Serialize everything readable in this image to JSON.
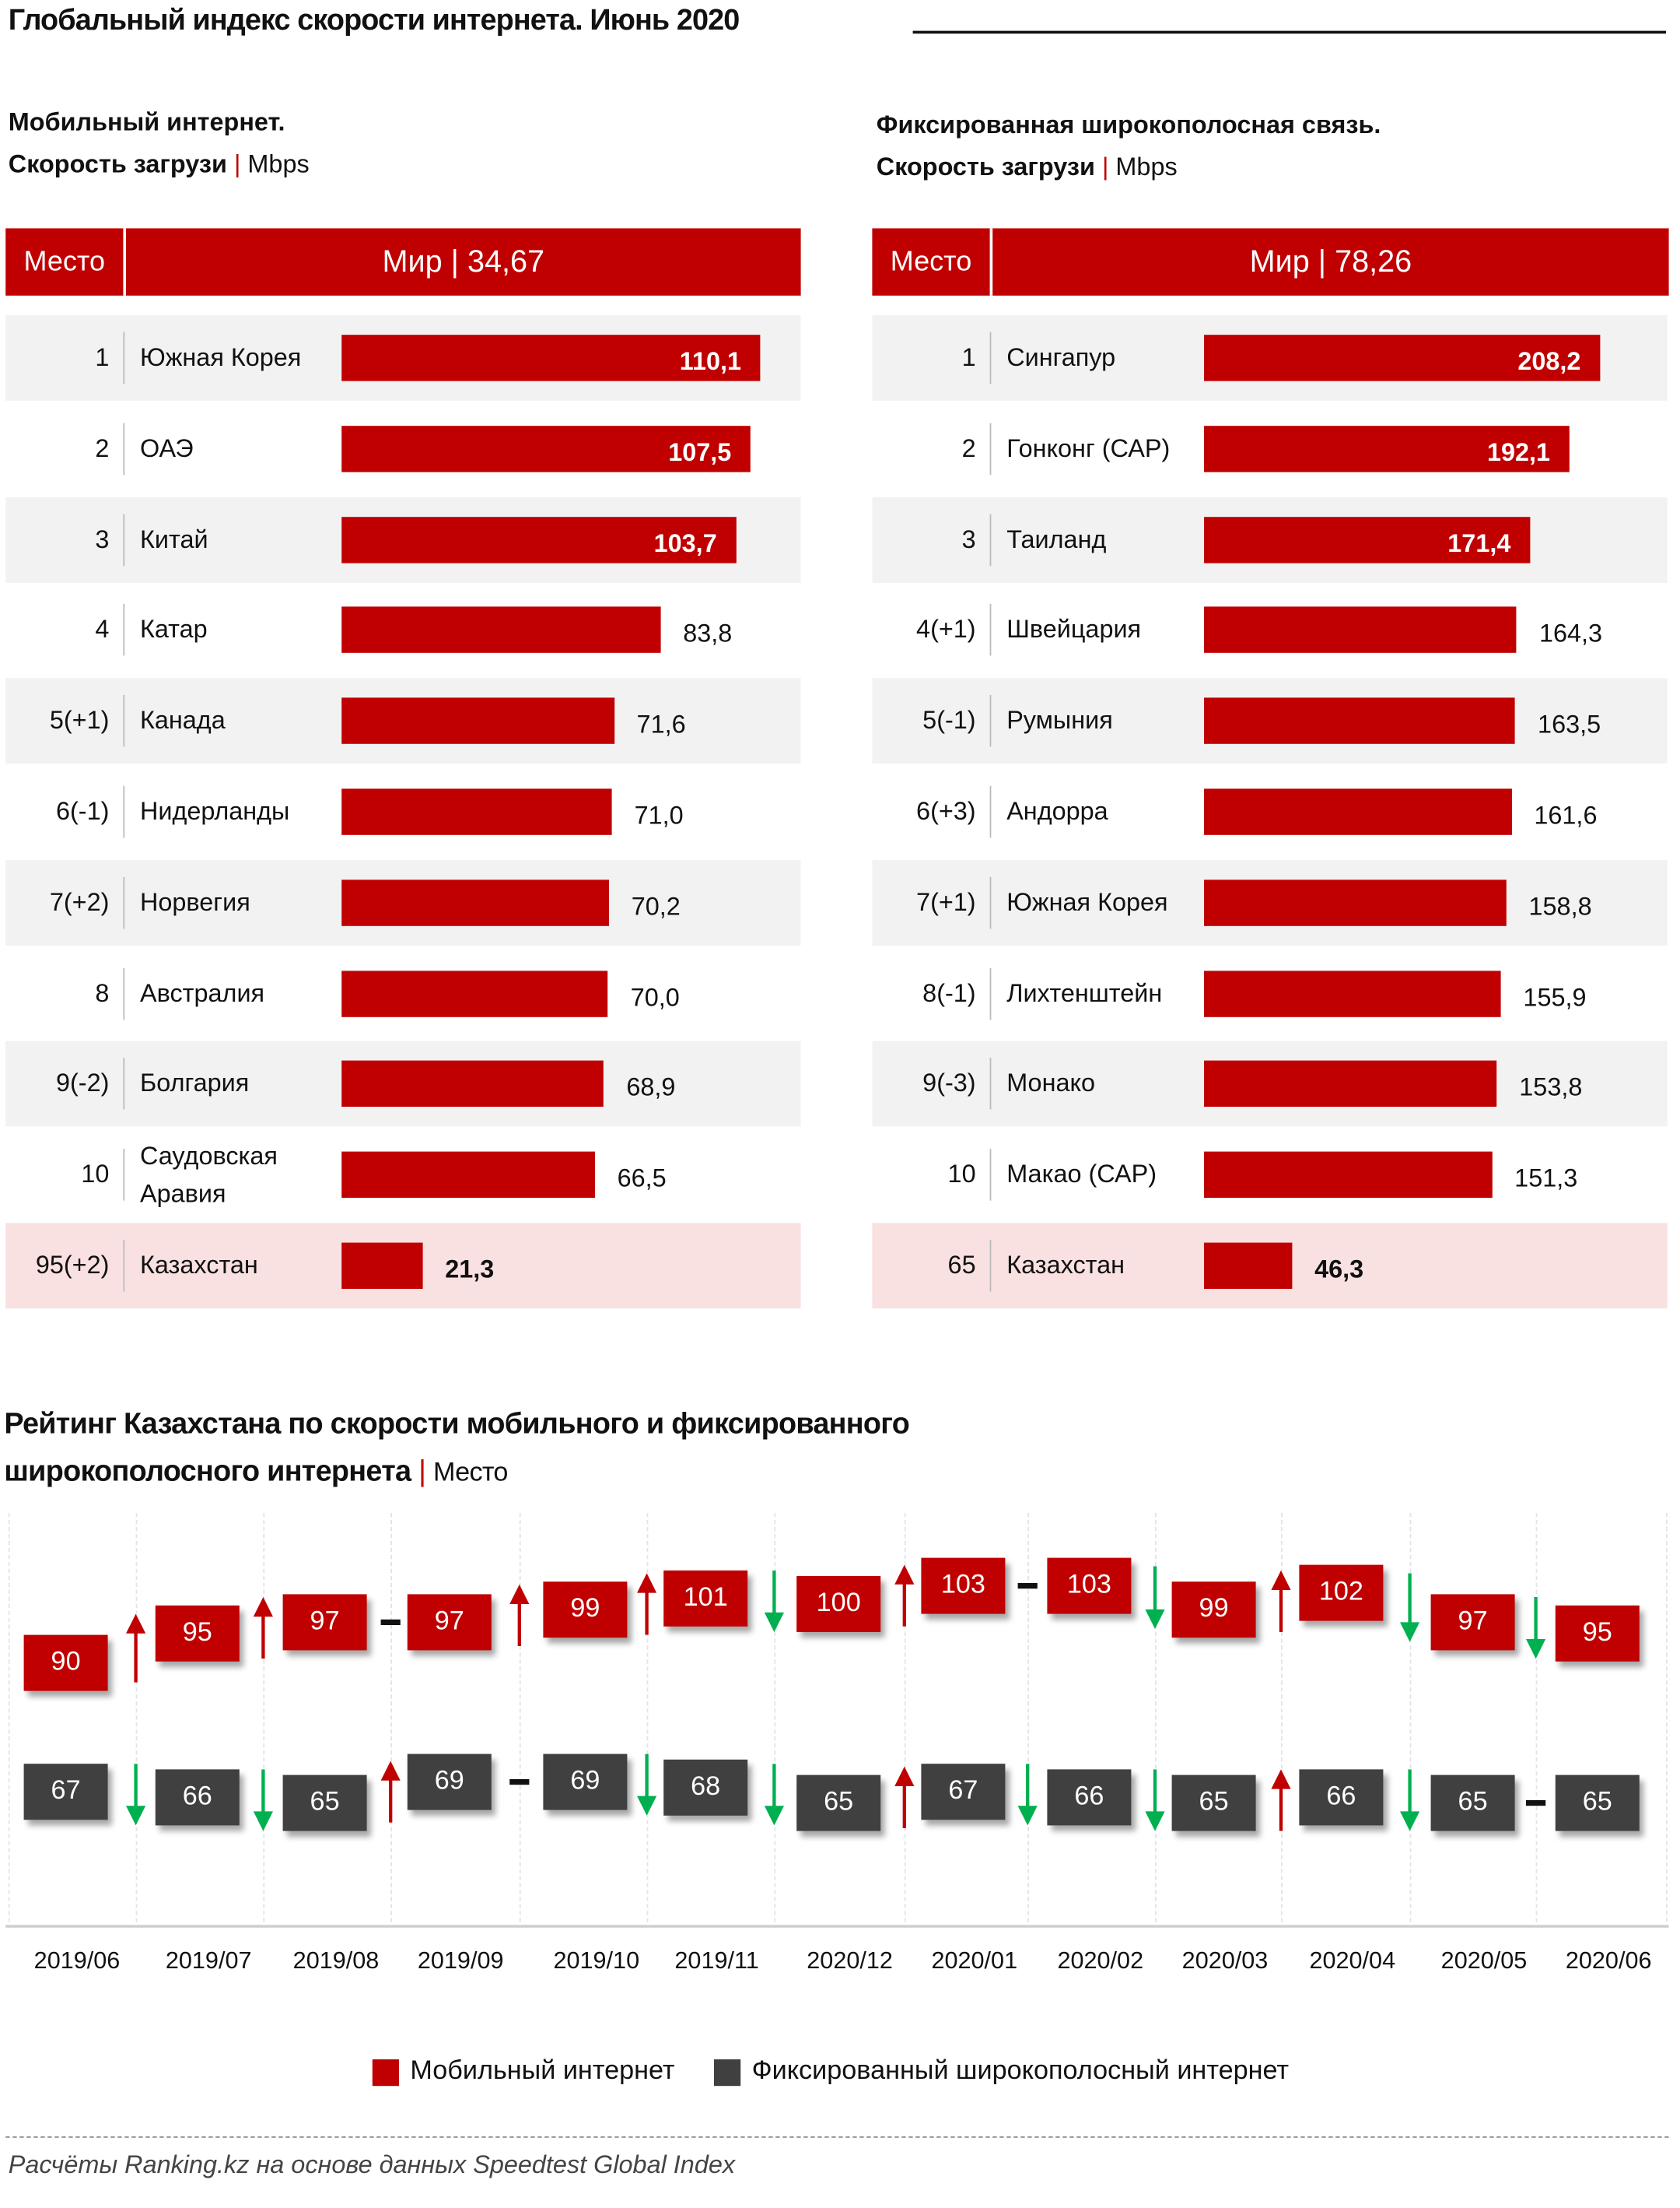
{
  "title": "Глобальный индекс скорости интернета. Июнь 2020",
  "mobile": {
    "heading": "Мобильный  интернет.",
    "subheading": "Скорость  загрузи",
    "pipe": "|",
    "unit": "Mbps",
    "col_rank": "Место",
    "world_label": "Мир | 34,67",
    "rows": [
      {
        "rank": "1",
        "country": "Южная Корея",
        "value": 110.1,
        "label": "110,1"
      },
      {
        "rank": "2",
        "country": "ОАЭ",
        "value": 107.5,
        "label": "107,5"
      },
      {
        "rank": "3",
        "country": "Китай",
        "value": 103.7,
        "label": "103,7"
      },
      {
        "rank": "4",
        "country": "Катар",
        "value": 83.8,
        "label": "83,8"
      },
      {
        "rank": "5(+1)",
        "country": "Канада",
        "value": 71.6,
        "label": "71,6"
      },
      {
        "rank": "6(-1)",
        "country": "Нидерланды",
        "value": 71.0,
        "label": "71,0"
      },
      {
        "rank": "7(+2)",
        "country": "Норвегия",
        "value": 70.2,
        "label": "70,2"
      },
      {
        "rank": "8",
        "country": "Австралия",
        "value": 70.0,
        "label": "70,0"
      },
      {
        "rank": "9(-2)",
        "country": "Болгария",
        "value": 68.9,
        "label": "68,9"
      },
      {
        "rank": "10",
        "country": "Саудовская Аравия",
        "value": 66.5,
        "label": "66,5"
      },
      {
        "rank": "95(+2)",
        "country": "Казахстан",
        "value": 21.3,
        "label": "21,3",
        "highlight": true
      }
    ]
  },
  "fixed": {
    "heading": "Фиксированная  широкополосная  связь.",
    "subheading": "Скорость  загрузи",
    "pipe": "|",
    "unit": "Mbps",
    "col_rank": "Место",
    "world_label": "Мир | 78,26",
    "rows": [
      {
        "rank": "1",
        "country": "Сингапур",
        "value": 208.2,
        "label": "208,2"
      },
      {
        "rank": "2",
        "country": "Гонконг (САР)",
        "value": 192.1,
        "label": "192,1"
      },
      {
        "rank": "3",
        "country": "Таиланд",
        "value": 171.4,
        "label": "171,4"
      },
      {
        "rank": "4(+1)",
        "country": "Швейцария",
        "value": 164.3,
        "label": "164,3"
      },
      {
        "rank": "5(-1)",
        "country": "Румыния",
        "value": 163.5,
        "label": "163,5"
      },
      {
        "rank": "6(+3)",
        "country": "Андорра",
        "value": 161.6,
        "label": "161,6"
      },
      {
        "rank": "7(+1)",
        "country": "Южная Корея",
        "value": 158.8,
        "label": "158,8"
      },
      {
        "rank": "8(-1)",
        "country": "Лихтенштейн",
        "value": 155.9,
        "label": "155,9"
      },
      {
        "rank": "9(-3)",
        "country": "Монако",
        "value": 153.8,
        "label": "153,8"
      },
      {
        "rank": "10",
        "country": "Макао (САР)",
        "value": 151.3,
        "label": "151,3"
      },
      {
        "rank": "65",
        "country": "Казахстан",
        "value": 46.3,
        "label": "46,3",
        "highlight": true
      }
    ]
  },
  "chart_data": {
    "type": "line",
    "title": "Рейтинг Казахстана по скорости мобильного и фиксированного",
    "title_line2": "широкополосного интернета",
    "title_pipe": "|",
    "title_unit": "Место",
    "categories": [
      "2019/06",
      "2019/07",
      "2019/08",
      "2019/09",
      "2019/10",
      "2019/11",
      "2020/12",
      "2020/01",
      "2020/02",
      "2020/03",
      "2020/04",
      "2020/05",
      "2020/06"
    ],
    "series": [
      {
        "name": "Мобильный интернет",
        "color": "#c00000",
        "values": [
          90,
          95,
          97,
          97,
          99,
          101,
          100,
          103,
          103,
          99,
          102,
          97,
          95
        ]
      },
      {
        "name": "Фиксированный широкополосный интернет",
        "color": "#404040",
        "values": [
          67,
          66,
          65,
          69,
          69,
          68,
          65,
          67,
          66,
          65,
          66,
          65,
          65
        ]
      }
    ],
    "arrow_up_color": "#c00000",
    "arrow_down_color": "#00b050",
    "legend_position": "bottom"
  },
  "source": "Расчёты Ranking.kz на основе данных Speedtest Global Index",
  "colors": {
    "accent": "#c00000",
    "row_alt": "#f2f2f2",
    "highlight": "#f9e1e1"
  }
}
